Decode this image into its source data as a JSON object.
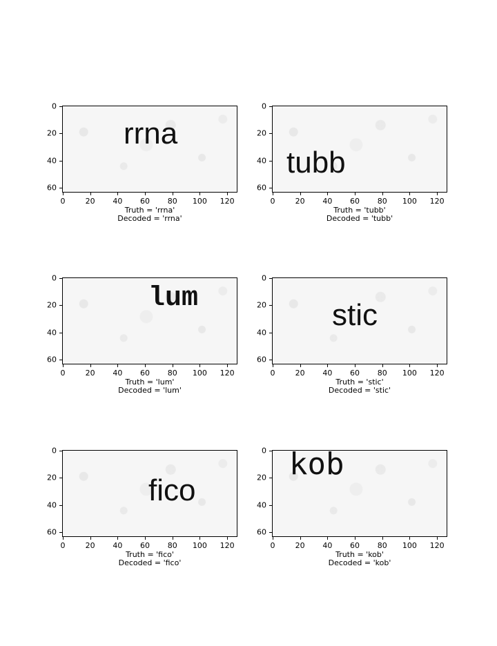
{
  "axes": {
    "x_ticks": [
      "0",
      "20",
      "40",
      "60",
      "80",
      "100",
      "120"
    ],
    "y_ticks": [
      "0",
      "20",
      "40",
      "60"
    ]
  },
  "panels": [
    {
      "word": "rrna",
      "truth": "Truth = 'rrna'",
      "decoded": "Decoded = 'rrna'"
    },
    {
      "word": "tubb",
      "truth": "Truth = 'tubb'",
      "decoded": "Decoded = 'tubb'"
    },
    {
      "word": "lum",
      "truth": "Truth = 'lum'",
      "decoded": "Decoded = 'lum'"
    },
    {
      "word": "stic",
      "truth": "Truth = 'stic'",
      "decoded": "Decoded = 'stic'"
    },
    {
      "word": "fico",
      "truth": "Truth = 'fico'",
      "decoded": "Decoded = 'fico'"
    },
    {
      "word": "kob",
      "truth": "Truth = 'kob'",
      "decoded": "Decoded = 'kob'"
    }
  ]
}
